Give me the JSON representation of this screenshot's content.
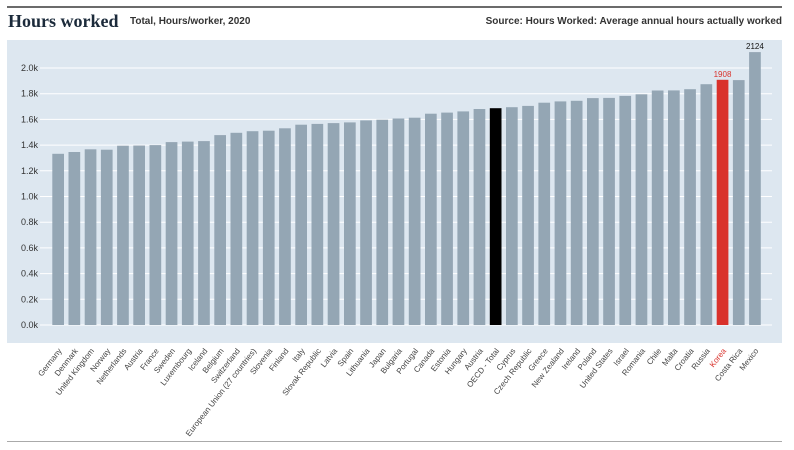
{
  "header": {
    "title": "Hours worked",
    "subtitle": "Total, Hours/worker, 2020",
    "source": "Source: Hours Worked: Average annual hours actually worked"
  },
  "colors": {
    "panel": "#dde7f0",
    "bar": "#94a6b4",
    "highlight_total": "#000000",
    "highlight_korea": "#d9312b",
    "grid": "#ffffff",
    "axis_text": "#333333",
    "label_text": "#444444"
  },
  "chart_data": {
    "type": "bar",
    "title": "Hours worked",
    "xlabel": "",
    "ylabel": "",
    "ylim": [
      0,
      2150
    ],
    "yticks": [
      0,
      200,
      400,
      600,
      800,
      1000,
      1200,
      1400,
      1600,
      1800,
      2000
    ],
    "ytick_labels": [
      "0.0k",
      "0.2k",
      "0.4k",
      "0.6k",
      "0.8k",
      "1.0k",
      "1.2k",
      "1.4k",
      "1.6k",
      "1.8k",
      "2.0k"
    ],
    "categories": [
      "Germany",
      "Denmark",
      "United Kingdom",
      "Norway",
      "Netherlands",
      "Austria",
      "France",
      "Sweden",
      "Luxembourg",
      "Iceland",
      "Belgium",
      "Switzerland",
      "European Union (27 countries)",
      "Slovenia",
      "Finland",
      "Italy",
      "Slovak Republic",
      "Latvia",
      "Spain",
      "Lithuania",
      "Japan",
      "Bulgaria",
      "Portugal",
      "Canada",
      "Estonia",
      "Hungary",
      "Austria",
      "OECD - Total",
      "Cyprus",
      "Czech Republic",
      "Greece",
      "New Zealand",
      "Ireland",
      "Poland",
      "United States",
      "Israel",
      "Romania",
      "Chile",
      "Malta",
      "Croatia",
      "Russia",
      "Korea",
      "Costa Rica",
      "Mexico"
    ],
    "values": [
      1332,
      1346,
      1367,
      1364,
      1395,
      1397,
      1400,
      1423,
      1427,
      1431,
      1478,
      1496,
      1508,
      1512,
      1531,
      1559,
      1565,
      1571,
      1577,
      1592,
      1598,
      1607,
      1613,
      1644,
      1653,
      1662,
      1681,
      1687,
      1695,
      1705,
      1730,
      1740,
      1745,
      1766,
      1767,
      1783,
      1795,
      1825,
      1826,
      1835,
      1874,
      1908,
      1906,
      2124
    ],
    "highlights": {
      "OECD - Total": "total",
      "Korea": "korea"
    },
    "data_labels": {
      "Korea": "1908",
      "Mexico": "2124"
    }
  }
}
